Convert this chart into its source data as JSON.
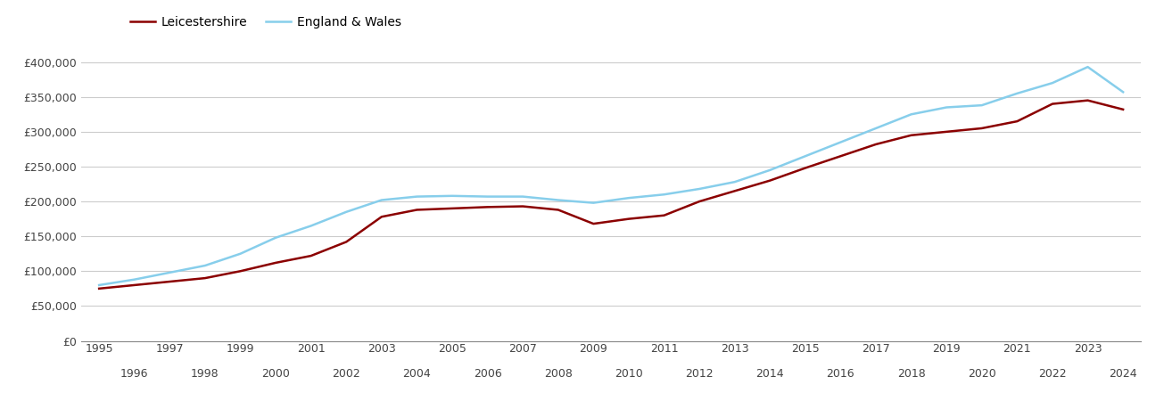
{
  "leicestershire": {
    "years": [
      1995,
      1996,
      1997,
      1998,
      1999,
      2000,
      2001,
      2002,
      2003,
      2004,
      2005,
      2006,
      2007,
      2008,
      2009,
      2010,
      2011,
      2012,
      2013,
      2014,
      2015,
      2016,
      2017,
      2018,
      2019,
      2020,
      2021,
      2022,
      2023,
      2024
    ],
    "values": [
      75000,
      80000,
      85000,
      90000,
      100000,
      112000,
      122000,
      142000,
      178000,
      188000,
      190000,
      192000,
      193000,
      188000,
      168000,
      175000,
      180000,
      200000,
      215000,
      230000,
      248000,
      265000,
      282000,
      295000,
      300000,
      305000,
      315000,
      340000,
      345000,
      332000
    ]
  },
  "england_wales": {
    "years": [
      1995,
      1996,
      1997,
      1998,
      1999,
      2000,
      2001,
      2002,
      2003,
      2004,
      2005,
      2006,
      2007,
      2008,
      2009,
      2010,
      2011,
      2012,
      2013,
      2014,
      2015,
      2016,
      2017,
      2018,
      2019,
      2020,
      2021,
      2022,
      2023,
      2024
    ],
    "values": [
      80000,
      88000,
      98000,
      108000,
      125000,
      148000,
      165000,
      185000,
      202000,
      207000,
      208000,
      207000,
      207000,
      202000,
      198000,
      205000,
      210000,
      218000,
      228000,
      245000,
      265000,
      285000,
      305000,
      325000,
      335000,
      338000,
      355000,
      370000,
      393000,
      357000
    ]
  },
  "leicestershire_color": "#8B0000",
  "england_wales_color": "#87CEEB",
  "leicestershire_label": "Leicestershire",
  "england_wales_label": "England & Wales",
  "ylim": [
    0,
    420000
  ],
  "yticks": [
    0,
    50000,
    100000,
    150000,
    200000,
    250000,
    300000,
    350000,
    400000
  ],
  "background_color": "#ffffff",
  "grid_color": "#cccccc",
  "line_width": 1.8,
  "odd_xticks": [
    1995,
    1997,
    1999,
    2001,
    2003,
    2005,
    2007,
    2009,
    2011,
    2013,
    2015,
    2017,
    2019,
    2021,
    2023
  ],
  "even_xticks": [
    1996,
    1998,
    2000,
    2002,
    2004,
    2006,
    2008,
    2010,
    2012,
    2014,
    2016,
    2018,
    2020,
    2022,
    2024
  ]
}
